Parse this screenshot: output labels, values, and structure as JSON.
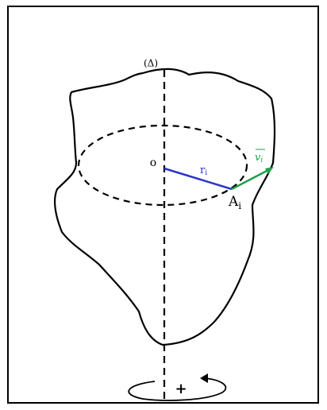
{
  "labels": {
    "axis": "(Δ)",
    "origin": "o",
    "radius": {
      "base": "r",
      "sub": "i"
    },
    "velocity": {
      "base": "v",
      "sub": "i"
    },
    "point": {
      "base": "A",
      "sub": "i"
    },
    "rotation_sense": "+"
  }
}
